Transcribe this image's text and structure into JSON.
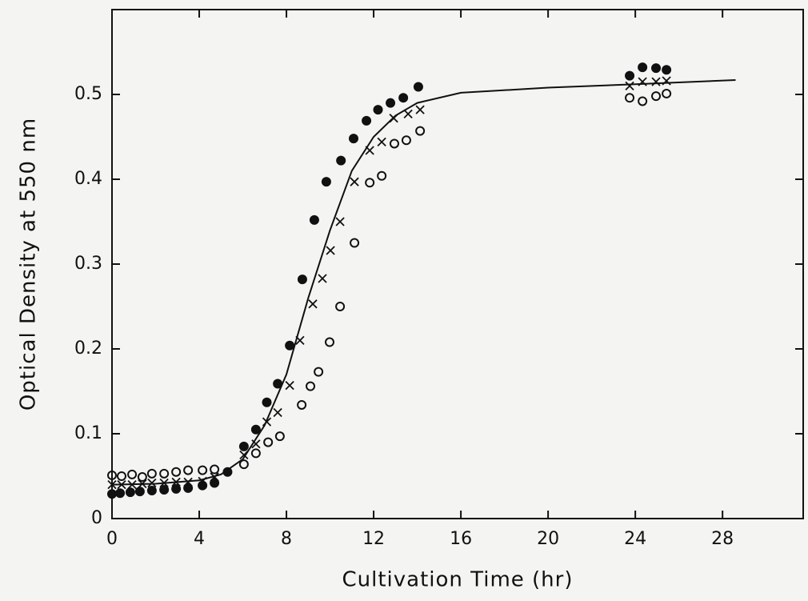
{
  "chart_data": {
    "type": "scatter",
    "xlabel": "Cultivation  Time  (hr)",
    "ylabel": "Optical Density at 550 nm",
    "xlim": [
      0,
      31.7
    ],
    "ylim": [
      0,
      0.6
    ],
    "xticks": [
      0,
      4,
      8,
      12,
      16,
      20,
      24,
      28
    ],
    "yticks": [
      0,
      0.1,
      0.2,
      0.3,
      0.4,
      0.5
    ],
    "series": [
      {
        "marker": "filled-circle",
        "color": "#111111",
        "x": [
          0,
          0.37,
          0.84,
          1.28,
          1.83,
          2.39,
          2.94,
          3.49,
          4.15,
          4.7,
          5.3,
          6.05,
          6.6,
          7.1,
          7.6,
          8.15,
          8.73,
          9.28,
          9.83,
          10.5,
          11.08,
          11.67,
          12.2,
          12.77,
          13.36,
          14.05,
          23.74,
          24.33,
          24.95,
          25.43
        ],
        "values": [
          0.029,
          0.03,
          0.031,
          0.032,
          0.033,
          0.034,
          0.035,
          0.036,
          0.039,
          0.042,
          0.055,
          0.085,
          0.105,
          0.137,
          0.159,
          0.204,
          0.282,
          0.352,
          0.397,
          0.422,
          0.448,
          0.469,
          0.482,
          0.49,
          0.496,
          0.509,
          0.522,
          0.532,
          0.531,
          0.529
        ]
      },
      {
        "marker": "cross",
        "color": "#111111",
        "x": [
          0,
          0.44,
          0.92,
          1.39,
          1.83,
          2.39,
          2.94,
          3.49,
          4.15,
          4.7,
          6.05,
          6.6,
          7.1,
          7.6,
          8.15,
          8.62,
          9.21,
          9.65,
          10.02,
          10.46,
          11.12,
          11.82,
          12.37,
          12.92,
          13.58,
          14.13,
          23.74,
          24.33,
          24.95,
          25.43
        ],
        "values": [
          0.04,
          0.04,
          0.04,
          0.041,
          0.042,
          0.042,
          0.043,
          0.043,
          0.044,
          0.049,
          0.075,
          0.088,
          0.114,
          0.125,
          0.157,
          0.21,
          0.253,
          0.283,
          0.316,
          0.35,
          0.397,
          0.434,
          0.444,
          0.472,
          0.477,
          0.482,
          0.51,
          0.515,
          0.515,
          0.516
        ]
      },
      {
        "marker": "open-circle",
        "color": "#111111",
        "x": [
          0,
          0.44,
          0.92,
          1.39,
          1.83,
          2.39,
          2.94,
          3.49,
          4.15,
          4.7,
          6.05,
          6.6,
          7.16,
          7.7,
          8.7,
          9.1,
          9.47,
          9.98,
          10.46,
          11.12,
          11.82,
          12.37,
          12.95,
          13.5,
          14.13,
          23.74,
          24.33,
          24.95,
          25.43
        ],
        "values": [
          0.051,
          0.05,
          0.052,
          0.049,
          0.053,
          0.053,
          0.055,
          0.057,
          0.057,
          0.058,
          0.064,
          0.077,
          0.09,
          0.097,
          0.134,
          0.156,
          0.173,
          0.208,
          0.25,
          0.325,
          0.396,
          0.404,
          0.442,
          0.446,
          0.457,
          0.496,
          0.492,
          0.498,
          0.501
        ]
      },
      {
        "marker": "line",
        "color": "#111111",
        "x": [
          0,
          2,
          4,
          5,
          6,
          7,
          8,
          9,
          10,
          11,
          12,
          13,
          14,
          16,
          20,
          24,
          28.6
        ],
        "values": [
          0.04,
          0.041,
          0.045,
          0.052,
          0.07,
          0.11,
          0.17,
          0.26,
          0.34,
          0.41,
          0.45,
          0.475,
          0.49,
          0.502,
          0.508,
          0.512,
          0.517
        ]
      }
    ]
  }
}
